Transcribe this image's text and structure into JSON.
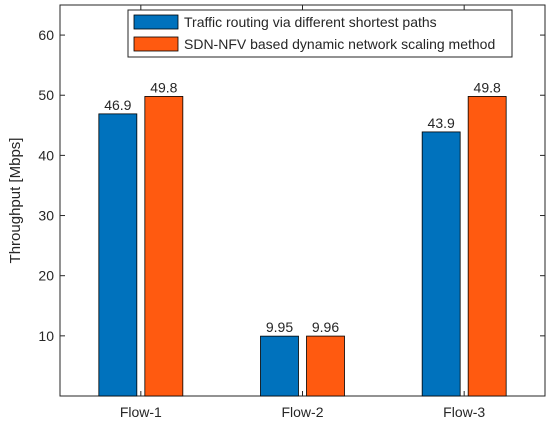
{
  "chart_data": {
    "type": "bar",
    "title": "",
    "xlabel": "",
    "ylabel": "Throughput [Mbps]",
    "categories": [
      "Flow-1",
      "Flow-2",
      "Flow-3"
    ],
    "series": [
      {
        "name": "Traffic routing via different shortest paths",
        "values": [
          46.9,
          9.95,
          43.9
        ],
        "labels": [
          "46.9",
          "9.95",
          "43.9"
        ],
        "color": "#0072BD"
      },
      {
        "name": "SDN-NFV based dynamic network scaling method",
        "values": [
          49.8,
          9.96,
          49.8
        ],
        "labels": [
          "49.8",
          "9.96",
          "49.8"
        ],
        "color": "#FF5A10"
      }
    ],
    "ylim": [
      0,
      65
    ],
    "yticks": [
      10,
      20,
      30,
      40,
      50,
      60
    ],
    "grid": false,
    "legend": "top-right"
  }
}
